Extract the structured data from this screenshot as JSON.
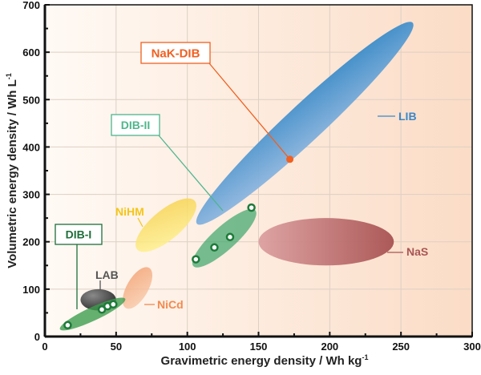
{
  "chart_data": {
    "type": "scatter",
    "xlabel": "Gravimetric energy density / Wh kg",
    "xlabel_sup": "-1",
    "ylabel": "Volumetric energy density / Wh L",
    "ylabel_sup": "-1",
    "xlim": [
      0,
      300
    ],
    "ylim": [
      0,
      700
    ],
    "xticks": [
      0,
      50,
      100,
      150,
      200,
      250,
      300
    ],
    "yticks": [
      0,
      100,
      200,
      300,
      400,
      500,
      600,
      700
    ],
    "grid": true,
    "regions": [
      {
        "name": "LIB",
        "color": "#3b87c9",
        "x_range": [
          100,
          265
        ],
        "y_range": [
          220,
          680
        ]
      },
      {
        "name": "NaS",
        "color": "#b05a5a",
        "x_range": [
          150,
          245
        ],
        "y_range": [
          150,
          250
        ]
      },
      {
        "name": "NiHM",
        "color": "#f8df60",
        "x_range": [
          60,
          110
        ],
        "y_range": [
          170,
          300
        ]
      },
      {
        "name": "NiCd",
        "color": "#f4a77a",
        "x_range": [
          50,
          80
        ],
        "y_range": [
          55,
          150
        ]
      },
      {
        "name": "LAB",
        "color": "#3a3a3a",
        "x_range": [
          25,
          50
        ],
        "y_range": [
          55,
          100
        ]
      },
      {
        "name": "DIB-I",
        "color": "#3f9e4f",
        "x_range": [
          10,
          57
        ],
        "y_range": [
          10,
          85
        ]
      },
      {
        "name": "DIB-II",
        "color": "#3aa56a",
        "x_range": [
          100,
          152
        ],
        "y_range": [
          130,
          285
        ]
      }
    ],
    "series": [
      {
        "name": "DIB-I",
        "color": "#1e7a3a",
        "points": [
          [
            16,
            24
          ],
          [
            40,
            57
          ],
          [
            44,
            64
          ],
          [
            48,
            68
          ]
        ]
      },
      {
        "name": "DIB-II",
        "color": "#1e7a3a",
        "points": [
          [
            106,
            163
          ],
          [
            119,
            188
          ],
          [
            130,
            210
          ],
          [
            145,
            272
          ]
        ]
      },
      {
        "name": "NaK-DIB",
        "color": "#f06020",
        "points": [
          [
            172,
            374
          ]
        ]
      }
    ],
    "labels": {
      "nak_dib": "NaK-DIB",
      "dib_ii": "DIB-II",
      "dib_i": "DIB-I",
      "lib": "LIB",
      "nas": "NaS",
      "nihm": "NiHM",
      "nicd": "NiCd",
      "lab": "LAB"
    },
    "colors": {
      "nak_dib": "#f06020",
      "dib_ii": "#4fb58e",
      "dib_i": "#1e6e3a",
      "lib": "#3b87c9",
      "nas": "#a85555",
      "nihm": "#f5c518",
      "nicd": "#f28a50",
      "lab": "#555555"
    }
  }
}
